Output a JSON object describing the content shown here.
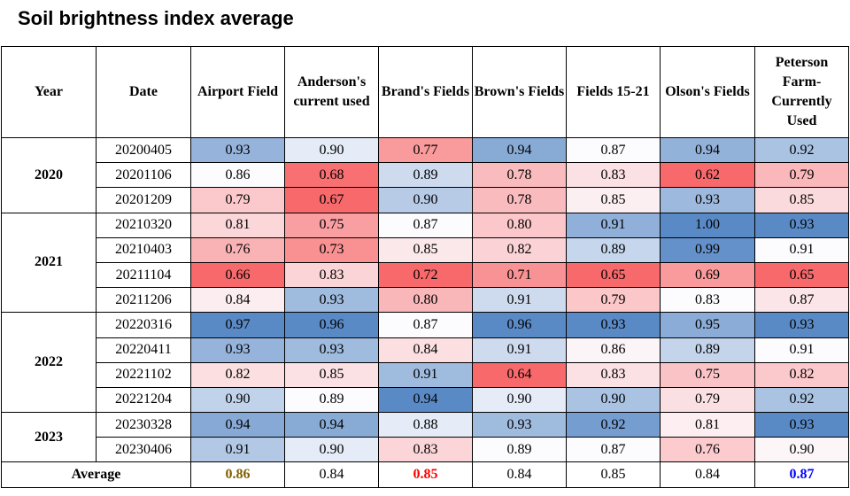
{
  "title": "Soil brightness index average",
  "chart_data": {
    "type": "table",
    "columns": [
      "Year",
      "Date",
      "Airport Field",
      "Anderson's current used",
      "Brand's Fields",
      "Brown's Fields",
      "Fields 15-21",
      "Olson's Fields",
      "Peterson Farm-Currently Used"
    ],
    "groups": [
      {
        "year": "2020",
        "rows": [
          {
            "date": "20200405",
            "values": [
              0.93,
              0.9,
              0.77,
              0.94,
              0.87,
              0.94,
              0.92
            ]
          },
          {
            "date": "20201106",
            "values": [
              0.86,
              0.68,
              0.89,
              0.78,
              0.83,
              0.62,
              0.79
            ]
          },
          {
            "date": "20201209",
            "values": [
              0.79,
              0.67,
              0.9,
              0.78,
              0.85,
              0.93,
              0.85
            ]
          }
        ]
      },
      {
        "year": "2021",
        "rows": [
          {
            "date": "20210320",
            "values": [
              0.81,
              0.75,
              0.87,
              0.8,
              0.91,
              1.0,
              0.93
            ]
          },
          {
            "date": "20210403",
            "values": [
              0.76,
              0.73,
              0.85,
              0.82,
              0.89,
              0.99,
              0.91
            ]
          },
          {
            "date": "20211104",
            "values": [
              0.66,
              0.83,
              0.72,
              0.71,
              0.65,
              0.69,
              0.65
            ]
          },
          {
            "date": "20211206",
            "values": [
              0.84,
              0.93,
              0.8,
              0.91,
              0.79,
              0.83,
              0.87
            ]
          }
        ]
      },
      {
        "year": "2022",
        "rows": [
          {
            "date": "20220316",
            "values": [
              0.97,
              0.96,
              0.87,
              0.96,
              0.93,
              0.95,
              0.93
            ]
          },
          {
            "date": "20220411",
            "values": [
              0.93,
              0.93,
              0.84,
              0.91,
              0.86,
              0.89,
              0.91
            ]
          },
          {
            "date": "20221102",
            "values": [
              0.82,
              0.85,
              0.91,
              0.64,
              0.83,
              0.75,
              0.82
            ]
          },
          {
            "date": "20221204",
            "values": [
              0.9,
              0.89,
              0.94,
              0.9,
              0.9,
              0.79,
              0.92
            ]
          }
        ]
      },
      {
        "year": "2023",
        "rows": [
          {
            "date": "20230328",
            "values": [
              0.94,
              0.94,
              0.88,
              0.93,
              0.92,
              0.81,
              0.93
            ]
          },
          {
            "date": "20230406",
            "values": [
              0.91,
              0.9,
              0.83,
              0.89,
              0.87,
              0.76,
              0.9
            ]
          }
        ]
      }
    ],
    "average": {
      "label": "Average",
      "values": [
        0.86,
        0.84,
        0.85,
        0.84,
        0.85,
        0.84,
        0.87
      ],
      "text_colors": [
        "#7f6000",
        "#000000",
        "#ff0000",
        "#000000",
        "#000000",
        "#000000",
        "#0000ff"
      ],
      "bold": [
        true,
        false,
        true,
        false,
        false,
        false,
        true
      ]
    },
    "color_scale": {
      "low": "#f8696b",
      "mid": "#fcfcff",
      "high": "#5a8ac6"
    }
  }
}
